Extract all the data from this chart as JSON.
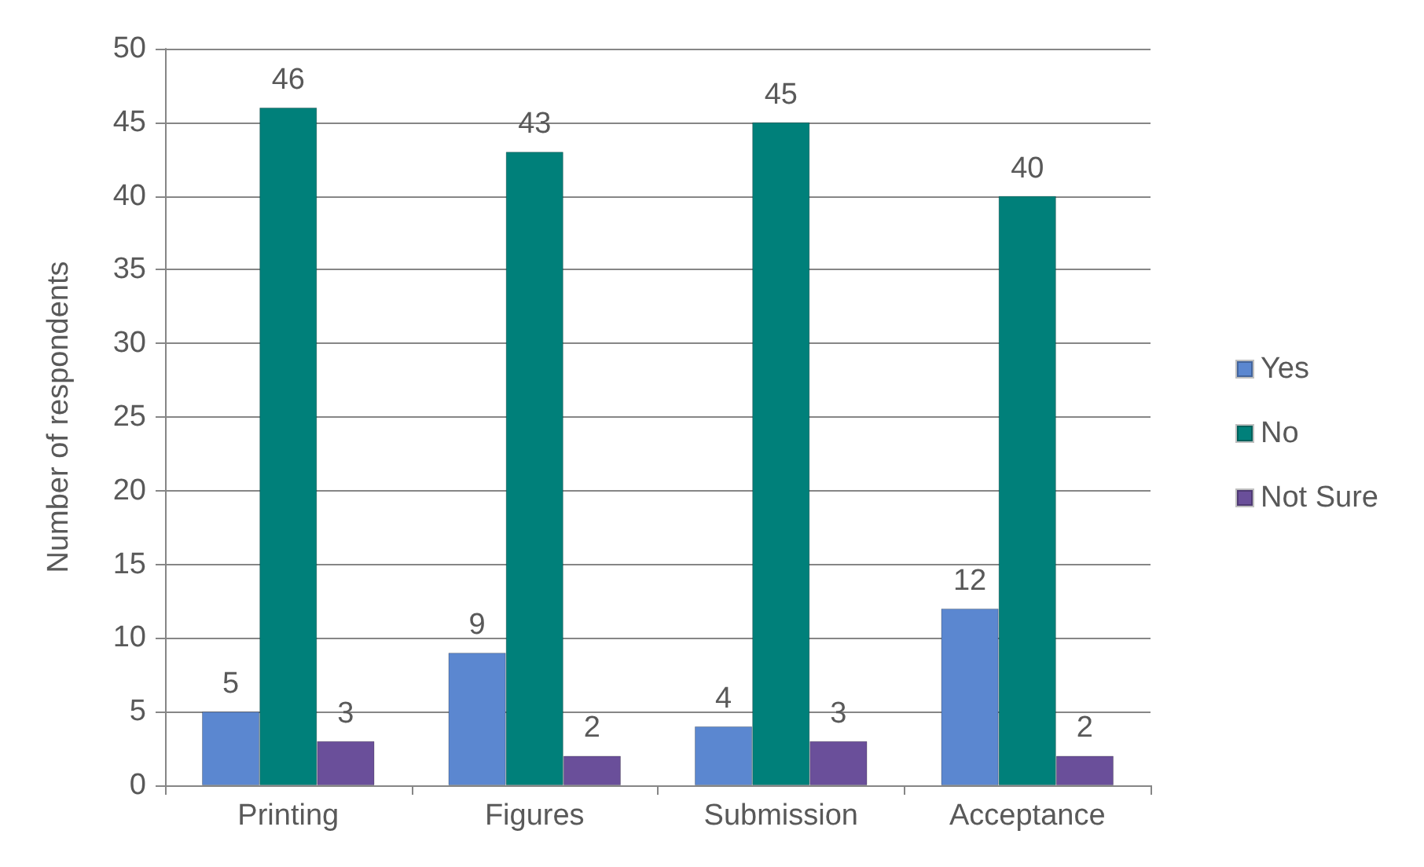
{
  "chart_data": {
    "type": "bar",
    "ylabel": "Number of respondents",
    "categories": [
      "Printing",
      "Figures",
      "Submission",
      "Acceptance"
    ],
    "series": [
      {
        "name": "Yes",
        "color": "#5b87d0",
        "values": [
          5,
          9,
          4,
          12
        ]
      },
      {
        "name": "No",
        "color": "#00807a",
        "values": [
          46,
          43,
          45,
          40
        ]
      },
      {
        "name": "Not Sure",
        "color": "#6a4f9a",
        "values": [
          3,
          2,
          3,
          2
        ]
      }
    ],
    "ylim": [
      0,
      50
    ],
    "yticks": [
      0,
      5,
      10,
      15,
      20,
      25,
      30,
      35,
      40,
      45,
      50
    ],
    "grid": "y",
    "legend": "right",
    "data_labels": true
  }
}
